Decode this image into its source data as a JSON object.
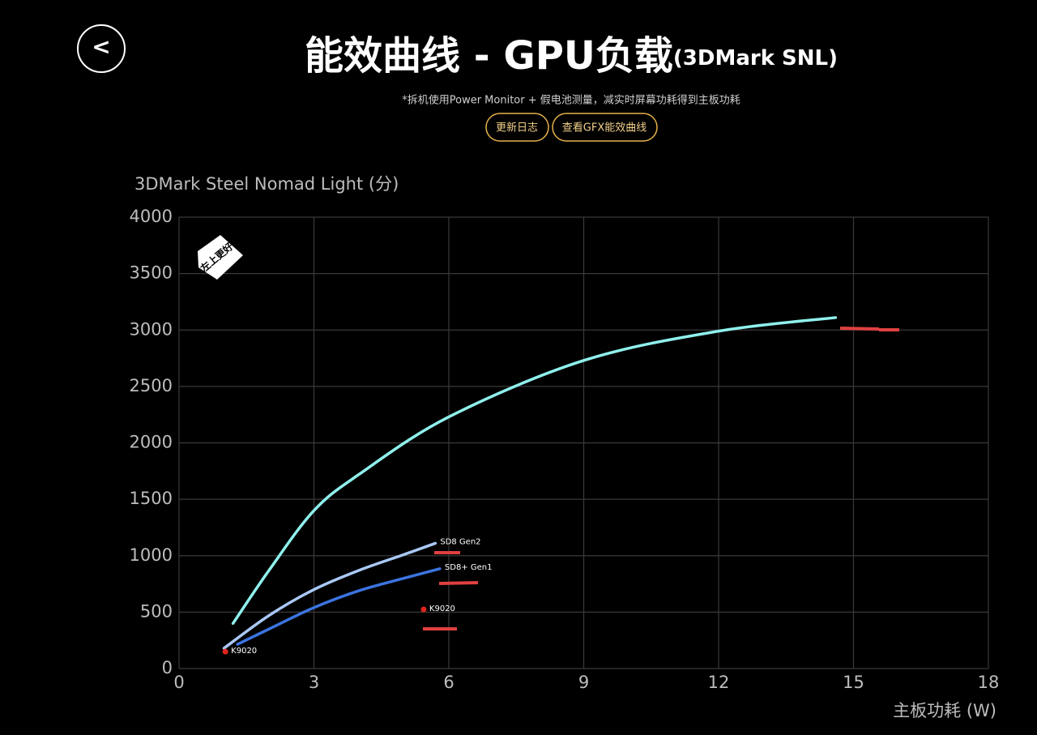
{
  "header": {
    "back": "<",
    "title_main": "能效曲线 - GPU负载",
    "title_suffix": "(3DMark SNL)",
    "subtitle": "*拆机使用Power Monitor + 假电池测量，减实时屏幕功耗得到主板功耗",
    "buttons": [
      "更新日志",
      "查看GFX能效曲线"
    ]
  },
  "chart_data": {
    "type": "line",
    "y_label": "3DMark Steel Nomad Light (分)",
    "x_label": "主板功耗 (W)",
    "badge": "左上更好",
    "xlim": [
      0,
      18
    ],
    "xticks": [
      0,
      3,
      6,
      9,
      12,
      15,
      18
    ],
    "ylim": [
      0,
      4000
    ],
    "yticks": [
      0,
      500,
      1000,
      1500,
      2000,
      2500,
      3000,
      3500,
      4000
    ],
    "grid": true,
    "series": [
      {
        "color": "#8ff0ec",
        "x": [
          1.2,
          2,
          3,
          4,
          6,
          9,
          12,
          14.6
        ],
        "values": [
          400,
          870,
          1400,
          1720,
          2230,
          2730,
          2990,
          3110
        ]
      },
      {
        "name": "SD8 Gen2",
        "color": "#a9c8f5",
        "x": [
          1,
          2,
          3,
          4,
          5,
          5.7
        ],
        "values": [
          180,
          470,
          700,
          870,
          1010,
          1110
        ]
      },
      {
        "name": "SD8+ Gen1",
        "color": "#3b74e0",
        "x": [
          1.3,
          2,
          3,
          4,
          5,
          5.8
        ],
        "values": [
          215,
          350,
          540,
          690,
          800,
          885
        ]
      }
    ],
    "points": [
      {
        "name": "K9020",
        "color": "#e0241e",
        "x": 1.03,
        "value": 150
      },
      {
        "name": "K9020",
        "color": "#e0241e",
        "x": 5.44,
        "value": 524
      }
    ]
  }
}
